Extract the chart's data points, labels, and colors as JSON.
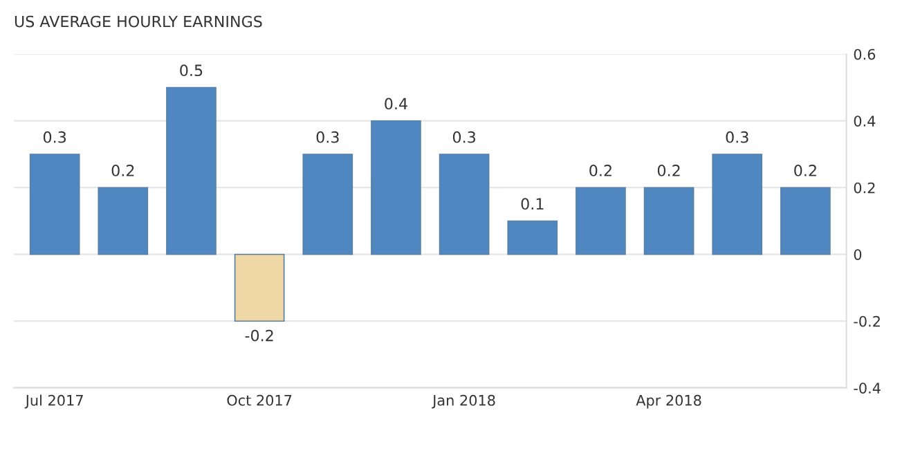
{
  "chart_data": {
    "type": "bar",
    "title": "US AVERAGE HOURLY EARNINGS",
    "categories": [
      "Jul 2017",
      null,
      null,
      "Oct 2017",
      null,
      null,
      "Jan 2018",
      null,
      null,
      "Apr 2018",
      null,
      null
    ],
    "values": [
      0.3,
      0.2,
      0.5,
      -0.2,
      0.3,
      0.4,
      0.3,
      0.1,
      0.2,
      0.2,
      0.3,
      0.2
    ],
    "colors": [
      "#4f88c0",
      "#4f88c0",
      "#4f88c0",
      "#efd7a6",
      "#4f88c0",
      "#4f88c0",
      "#4f88c0",
      "#4f88c0",
      "#4f88c0",
      "#4f88c0",
      "#4f88c0",
      "#4f88c0"
    ],
    "ylim": [
      -0.4,
      0.6
    ],
    "yticks": [
      -0.4,
      -0.2,
      0,
      0.2,
      0.4,
      0.6
    ],
    "grid": "y",
    "data_labels": true
  }
}
